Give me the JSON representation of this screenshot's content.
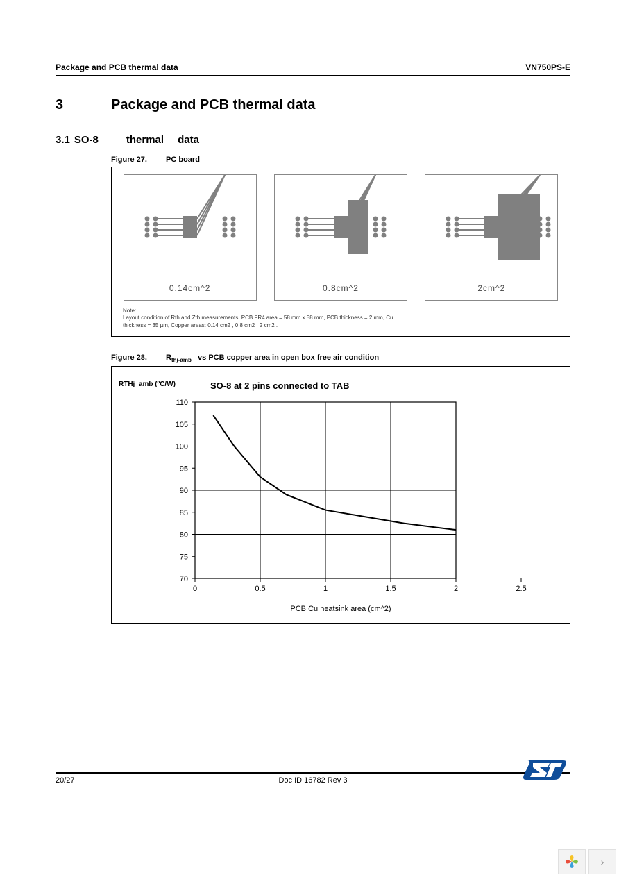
{
  "header": {
    "left": "Package and PCB thermal data",
    "right": "VN750PS-E"
  },
  "section": {
    "number": "3",
    "title": "Package and PCB thermal data"
  },
  "subsection": {
    "number": "3.1",
    "package": "SO-8",
    "word_thermal": "thermal",
    "word_data": "data"
  },
  "figure27": {
    "caption_prefix": "Figure 27.",
    "caption_text": "PC board",
    "boards": [
      {
        "label": "0.14cm^2",
        "tab_width": 20,
        "tab_height": 32,
        "tab_x_offset": 0
      },
      {
        "label": "0.8cm^2",
        "tab_width": 30,
        "tab_height": 78,
        "tab_x_offset": 0
      },
      {
        "label": "2cm^2",
        "tab_width": 60,
        "tab_height": 96,
        "tab_x_offset": 0
      }
    ],
    "colors": {
      "trace": "#808080",
      "body": "#808080",
      "pad": "#808080",
      "tab": "#808080"
    },
    "note_line1": "Note:",
    "note_line2": "Layout condition of Rth     and Zth     measurements: PCB FR4 area = 58 mm x 58 mm, PCB thickness = 2 mm, Cu",
    "note_line3": "thickness = 35 µm, Copper areas: 0.14 cm2        , 0.8 cm2   , 2 cm2 ."
  },
  "figure28": {
    "caption_prefix": "Figure 28.",
    "caption_rth": "R",
    "caption_sub": "thj-amb",
    "caption_rest": "vs PCB copper area in open box free air condition",
    "chart": {
      "title": "SO-8 at 2 pins connected to TAB",
      "y_axis_label": "RTHj_amb (ºC/W)",
      "x_axis_label": "PCB Cu heatsink area (cm^2)",
      "xlim": [
        0,
        2.5
      ],
      "ylim": [
        70,
        110
      ],
      "xticks": [
        0,
        0.5,
        1,
        1.5,
        2,
        2.5
      ],
      "yticks": [
        70,
        75,
        80,
        85,
        90,
        95,
        100,
        105,
        110
      ],
      "grid_color": "#000000",
      "line_color": "#000000",
      "line_width": 2,
      "background": "#ffffff",
      "tick_font_size": 11,
      "data": [
        {
          "x": 0.14,
          "y": 107
        },
        {
          "x": 0.3,
          "y": 100
        },
        {
          "x": 0.5,
          "y": 93
        },
        {
          "x": 0.7,
          "y": 89
        },
        {
          "x": 1.0,
          "y": 85.5
        },
        {
          "x": 1.3,
          "y": 84
        },
        {
          "x": 1.6,
          "y": 82.5
        },
        {
          "x": 2.0,
          "y": 81
        }
      ]
    }
  },
  "footer": {
    "page_num": "20/27",
    "doc_id": "Doc ID 16782 Rev 3"
  },
  "logo": {
    "blue": "#0f4d9a",
    "white": "#ffffff"
  },
  "nav_icon": {
    "petal_yellow": "#f7c325",
    "petal_green": "#7cc142",
    "petal_red": "#e94e3c",
    "petal_blue": "#3aa0da"
  }
}
